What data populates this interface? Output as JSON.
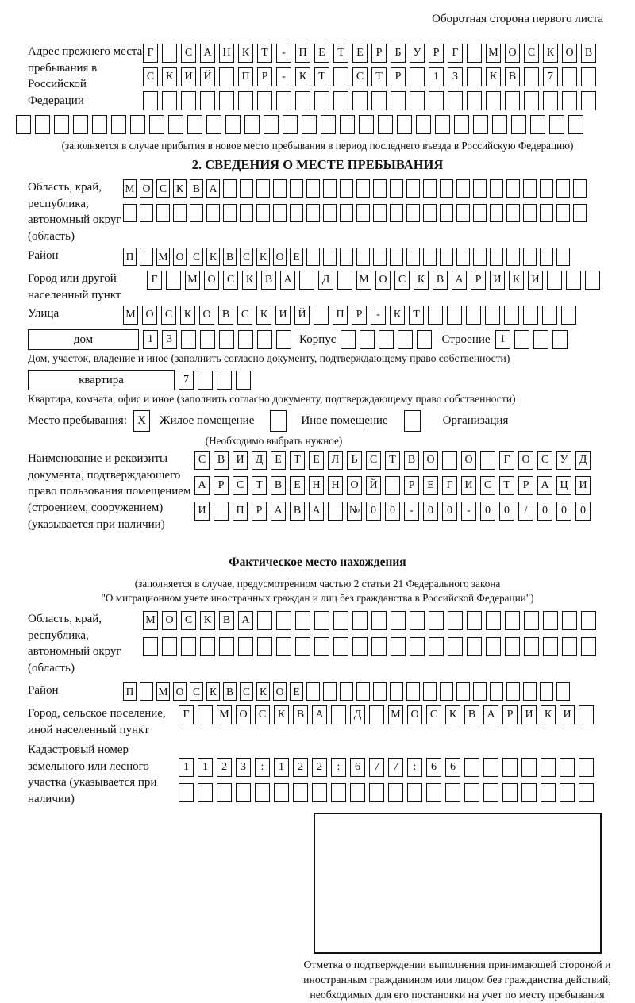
{
  "page_header": "Оборотная сторона первого листа",
  "prev_address": {
    "label": "Адрес прежнего места пребывания в Российской Федерации",
    "rows": [
      [
        "Г",
        "",
        "С",
        "А",
        "Н",
        "К",
        "Т",
        "-",
        "П",
        "Е",
        "Т",
        "Е",
        "Р",
        "Б",
        "У",
        "Р",
        "Г",
        "",
        "М",
        "О",
        "С",
        "К",
        "О",
        "В"
      ],
      [
        "С",
        "К",
        "И",
        "Й",
        "",
        "П",
        "Р",
        "-",
        "К",
        "Т",
        "",
        "С",
        "Т",
        "Р",
        "",
        "1",
        "3",
        "",
        "К",
        "В",
        "",
        "7",
        "",
        ""
      ],
      [
        "",
        "",
        "",
        "",
        "",
        "",
        "",
        "",
        "",
        "",
        "",
        "",
        "",
        "",
        "",
        "",
        "",
        "",
        "",
        "",
        "",
        "",
        "",
        ""
      ],
      [
        "",
        "",
        "",
        "",
        "",
        "",
        "",
        "",
        "",
        "",
        "",
        "",
        "",
        "",
        "",
        "",
        "",
        "",
        "",
        "",
        "",
        "",
        "",
        "",
        "",
        "",
        "",
        "",
        "",
        ""
      ]
    ],
    "note": "(заполняется в случае прибытия в новое место пребывания в период последнего въезда в Российскую Федерацию)"
  },
  "section2": {
    "title": "2. СВЕДЕНИЯ О МЕСТЕ ПРЕБЫВАНИЯ",
    "region": {
      "label": "Область, край, республика, автономный округ (область)",
      "rows": [
        [
          "М",
          "О",
          "С",
          "К",
          "В",
          "А",
          "",
          "",
          "",
          "",
          "",
          "",
          "",
          "",
          "",
          "",
          "",
          "",
          "",
          "",
          "",
          "",
          "",
          "",
          "",
          "",
          "",
          ""
        ],
        [
          "",
          "",
          "",
          "",
          "",
          "",
          "",
          "",
          "",
          "",
          "",
          "",
          "",
          "",
          "",
          "",
          "",
          "",
          "",
          "",
          "",
          "",
          "",
          "",
          "",
          "",
          "",
          ""
        ]
      ]
    },
    "district": {
      "label": "Район",
      "row": [
        "П",
        "",
        "М",
        "О",
        "С",
        "К",
        "В",
        "С",
        "К",
        "О",
        "Е",
        "",
        "",
        "",
        "",
        "",
        "",
        "",
        "",
        "",
        "",
        "",
        "",
        "",
        "",
        "",
        ""
      ]
    },
    "city": {
      "label": "Город или другой населенный пункт",
      "row": [
        "Г",
        "",
        "М",
        "О",
        "С",
        "К",
        "В",
        "А",
        "",
        "Д",
        "",
        "М",
        "О",
        "С",
        "К",
        "В",
        "А",
        "Р",
        "И",
        "К",
        "И",
        "",
        "",
        ""
      ]
    },
    "street": {
      "label": "Улица",
      "row": [
        "М",
        "О",
        "С",
        "К",
        "О",
        "В",
        "С",
        "К",
        "И",
        "Й",
        "",
        "П",
        "Р",
        "-",
        "К",
        "Т",
        "",
        "",
        "",
        "",
        "",
        "",
        "",
        ""
      ]
    },
    "house": {
      "box_label": "дом",
      "cells": [
        "1",
        "3",
        "",
        "",
        "",
        "",
        "",
        ""
      ],
      "korpus_label": "Корпус",
      "korpus_cells": [
        "",
        "",
        "",
        "",
        ""
      ],
      "stroenie_label": "Строение",
      "stroenie_cells": [
        "1",
        "",
        "",
        ""
      ],
      "note": "Дом, участок, владение и иное (заполнить согласно документу, подтверждающему право собственности)"
    },
    "apartment": {
      "box_label": "квартира",
      "cells": [
        "7",
        "",
        "",
        ""
      ],
      "note": "Квартира, комната, офис и иное (заполнить согласно документу, подтверждающему право собственности)"
    },
    "stay_type": {
      "label": "Место пребывания:",
      "checked_mark": "X",
      "options": [
        "Жилое помещение",
        "Иное помещение",
        "Организация"
      ],
      "note": "(Необходимо выбрать нужное)"
    },
    "doc": {
      "label": "Наименование и реквизиты документа, подтверждающего право пользования помещением (строением, сооружением) (указывается при наличии)",
      "rows": [
        [
          "С",
          "В",
          "И",
          "Д",
          "Е",
          "Т",
          "Е",
          "Л",
          "Ь",
          "С",
          "Т",
          "В",
          "О",
          "",
          "О",
          "",
          "Г",
          "О",
          "С",
          "У",
          "Д"
        ],
        [
          "А",
          "Р",
          "С",
          "Т",
          "В",
          "Е",
          "Н",
          "Н",
          "О",
          "Й",
          "",
          "Р",
          "Е",
          "Г",
          "И",
          "С",
          "Т",
          "Р",
          "А",
          "Ц",
          "И"
        ],
        [
          "И",
          "",
          "П",
          "Р",
          "А",
          "В",
          "А",
          "",
          "№",
          "0",
          "0",
          "-",
          "0",
          "0",
          "-",
          "0",
          "0",
          "/",
          "0",
          "0",
          "0"
        ]
      ]
    }
  },
  "actual_location": {
    "title": "Фактическое место нахождения",
    "note_line1": "(заполняется в случае, предусмотренном частью 2 статьи 21 Федерального закона",
    "note_line2": "\"О миграционном учете иностранных граждан и лиц без гражданства в Российской Федерации\")",
    "region": {
      "label": "Область, край, республика, автономный округ (область)",
      "rows": [
        [
          "М",
          "О",
          "С",
          "К",
          "В",
          "А",
          "",
          "",
          "",
          "",
          "",
          "",
          "",
          "",
          "",
          "",
          "",
          "",
          "",
          "",
          "",
          "",
          "",
          ""
        ],
        [
          "",
          "",
          "",
          "",
          "",
          "",
          "",
          "",
          "",
          "",
          "",
          "",
          "",
          "",
          "",
          "",
          "",
          "",
          "",
          "",
          "",
          "",
          "",
          ""
        ]
      ]
    },
    "district": {
      "label": "Район",
      "row": [
        "П",
        "",
        "М",
        "О",
        "С",
        "К",
        "В",
        "С",
        "К",
        "О",
        "Е",
        "",
        "",
        "",
        "",
        "",
        "",
        "",
        "",
        "",
        "",
        "",
        "",
        "",
        "",
        "",
        ""
      ]
    },
    "city": {
      "label": "Город, сельское поселение, иной населенный пункт",
      "row": [
        "Г",
        "",
        "М",
        "О",
        "С",
        "К",
        "В",
        "А",
        "",
        "Д",
        "",
        "М",
        "О",
        "С",
        "К",
        "В",
        "А",
        "Р",
        "И",
        "К",
        "И",
        ""
      ]
    },
    "cadastral": {
      "label": "Кадастровый номер земельного или лесного участка (указывается при наличии)",
      "rows": [
        [
          "1",
          "1",
          "2",
          "3",
          ":",
          "1",
          "2",
          "2",
          ":",
          "6",
          "7",
          "7",
          ":",
          "6",
          "6",
          "",
          "",
          "",
          "",
          "",
          "",
          ""
        ],
        [
          "",
          "",
          "",
          "",
          "",
          "",
          "",
          "",
          "",
          "",
          "",
          "",
          "",
          "",
          "",
          "",
          "",
          "",
          "",
          "",
          "",
          ""
        ]
      ]
    },
    "stamp_caption": "Отметка о подтверждении выполнения принимающей стороной и иностранным гражданином или лицом без гражданства действий, необходимых для его постановки на учет по месту пребывания"
  }
}
